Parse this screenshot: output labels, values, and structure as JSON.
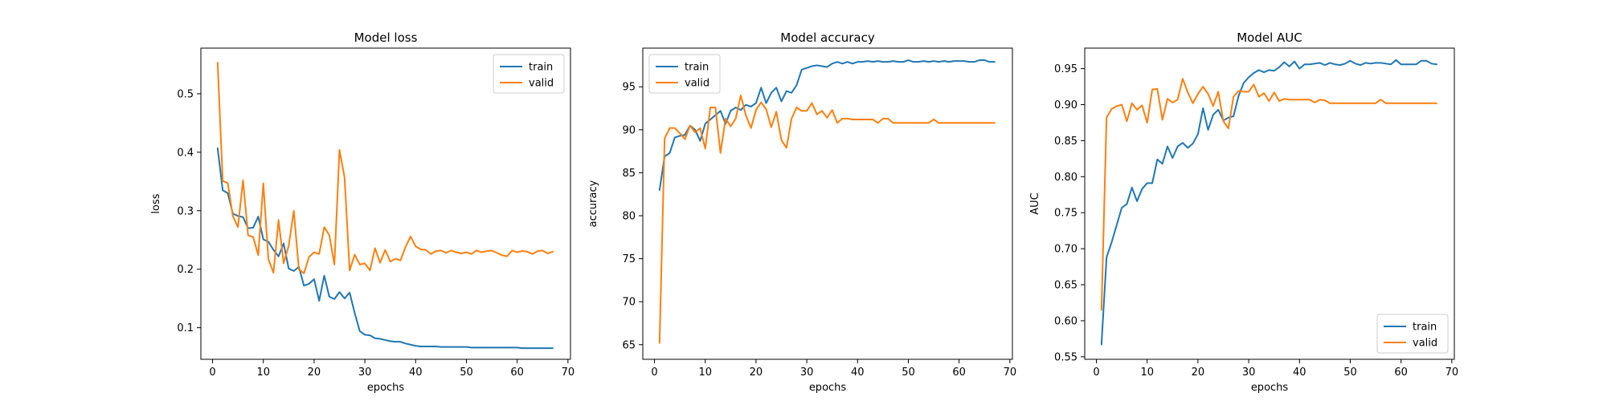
{
  "colors": {
    "train": "#1f77b4",
    "valid": "#ff7f0e",
    "axis": "#000000",
    "background": "#ffffff"
  },
  "chart_data": [
    {
      "type": "line",
      "title": "Model loss",
      "xlabel": "epochs",
      "ylabel": "loss",
      "xlim": [
        -2.3,
        70.5
      ],
      "ylim": [
        0.046,
        0.578
      ],
      "xticks": [
        0,
        10,
        20,
        30,
        40,
        50,
        60,
        70
      ],
      "yticks": [
        0.1,
        0.2,
        0.3,
        0.4,
        0.5
      ],
      "ytick_labels": [
        "0.1",
        "0.2",
        "0.3",
        "0.4",
        "0.5"
      ],
      "grid": false,
      "legend": "top-right",
      "x": [
        1,
        2,
        3,
        4,
        5,
        6,
        7,
        8,
        9,
        10,
        11,
        12,
        13,
        14,
        15,
        16,
        17,
        18,
        19,
        20,
        21,
        22,
        23,
        24,
        25,
        26,
        27,
        28,
        29,
        30,
        31,
        32,
        33,
        34,
        35,
        36,
        37,
        38,
        39,
        40,
        41,
        42,
        43,
        44,
        45,
        46,
        47,
        48,
        49,
        50,
        51,
        52,
        53,
        54,
        55,
        56,
        57,
        58,
        59,
        60,
        61,
        62,
        63,
        64,
        65,
        66,
        67
      ],
      "series": [
        {
          "name": "train",
          "color": "#1f77b4",
          "values": [
            0.407,
            0.335,
            0.33,
            0.295,
            0.291,
            0.289,
            0.27,
            0.271,
            0.29,
            0.251,
            0.247,
            0.233,
            0.222,
            0.244,
            0.201,
            0.197,
            0.204,
            0.172,
            0.175,
            0.183,
            0.146,
            0.189,
            0.153,
            0.149,
            0.161,
            0.15,
            0.16,
            0.125,
            0.094,
            0.088,
            0.087,
            0.082,
            0.081,
            0.079,
            0.077,
            0.076,
            0.076,
            0.073,
            0.071,
            0.069,
            0.068,
            0.068,
            0.068,
            0.068,
            0.067,
            0.067,
            0.067,
            0.067,
            0.067,
            0.067,
            0.066,
            0.066,
            0.066,
            0.066,
            0.066,
            0.066,
            0.066,
            0.066,
            0.066,
            0.066,
            0.065,
            0.065,
            0.065,
            0.065,
            0.065,
            0.065,
            0.065
          ]
        },
        {
          "name": "valid",
          "color": "#ff7f0e",
          "values": [
            0.553,
            0.351,
            0.347,
            0.291,
            0.272,
            0.352,
            0.258,
            0.255,
            0.224,
            0.347,
            0.217,
            0.194,
            0.284,
            0.21,
            0.24,
            0.3,
            0.2,
            0.193,
            0.221,
            0.229,
            0.226,
            0.272,
            0.258,
            0.208,
            0.404,
            0.357,
            0.198,
            0.225,
            0.208,
            0.21,
            0.198,
            0.236,
            0.211,
            0.233,
            0.213,
            0.218,
            0.215,
            0.238,
            0.256,
            0.239,
            0.234,
            0.233,
            0.226,
            0.231,
            0.232,
            0.228,
            0.232,
            0.229,
            0.227,
            0.229,
            0.226,
            0.232,
            0.229,
            0.231,
            0.232,
            0.228,
            0.224,
            0.222,
            0.232,
            0.229,
            0.231,
            0.23,
            0.226,
            0.231,
            0.232,
            0.227,
            0.23
          ]
        }
      ]
    },
    {
      "type": "line",
      "title": "Model accuracy",
      "xlabel": "epochs",
      "ylabel": "accuracy",
      "xlim": [
        -2.3,
        70.5
      ],
      "ylim": [
        63.3,
        99.5
      ],
      "xticks": [
        0,
        10,
        20,
        30,
        40,
        50,
        60,
        70
      ],
      "yticks": [
        65,
        70,
        75,
        80,
        85,
        90,
        95
      ],
      "ytick_labels": [
        "65",
        "70",
        "75",
        "80",
        "85",
        "90",
        "95"
      ],
      "grid": false,
      "legend": "top-left",
      "x": [
        1,
        2,
        3,
        4,
        5,
        6,
        7,
        8,
        9,
        10,
        11,
        12,
        13,
        14,
        15,
        16,
        17,
        18,
        19,
        20,
        21,
        22,
        23,
        24,
        25,
        26,
        27,
        28,
        29,
        30,
        31,
        32,
        33,
        34,
        35,
        36,
        37,
        38,
        39,
        40,
        41,
        42,
        43,
        44,
        45,
        46,
        47,
        48,
        49,
        50,
        51,
        52,
        53,
        54,
        55,
        56,
        57,
        58,
        59,
        60,
        61,
        62,
        63,
        64,
        65,
        66,
        67
      ],
      "series": [
        {
          "name": "train",
          "color": "#1f77b4",
          "values": [
            83.0,
            86.9,
            87.3,
            89.1,
            89.3,
            89.4,
            90.5,
            90.0,
            88.7,
            90.7,
            91.2,
            91.7,
            92.2,
            90.7,
            92.2,
            92.6,
            92.3,
            92.9,
            92.7,
            93.1,
            94.9,
            93.1,
            94.3,
            94.9,
            93.3,
            94.5,
            94.3,
            95.2,
            97.0,
            97.2,
            97.4,
            97.5,
            97.4,
            97.3,
            97.7,
            97.9,
            97.7,
            97.9,
            97.7,
            97.9,
            97.9,
            98.0,
            97.9,
            98.0,
            97.9,
            97.9,
            98.0,
            97.9,
            97.9,
            98.1,
            97.9,
            97.9,
            98.0,
            97.9,
            98.0,
            97.9,
            98.0,
            97.9,
            98.0,
            98.0,
            98.0,
            97.9,
            97.9,
            98.1,
            98.1,
            97.9,
            97.9
          ]
        },
        {
          "name": "valid",
          "color": "#ff7f0e",
          "values": [
            65.2,
            89.0,
            90.2,
            90.2,
            89.6,
            88.9,
            90.5,
            89.7,
            90.2,
            87.8,
            92.6,
            92.6,
            87.3,
            91.3,
            90.4,
            91.3,
            94.0,
            91.7,
            90.2,
            92.3,
            93.2,
            92.4,
            90.3,
            92.1,
            88.8,
            87.9,
            91.3,
            92.6,
            92.2,
            92.2,
            93.1,
            91.8,
            92.2,
            91.4,
            92.3,
            90.8,
            91.3,
            91.3,
            91.2,
            91.2,
            91.2,
            91.2,
            91.2,
            90.8,
            91.3,
            91.3,
            90.8,
            90.8,
            90.8,
            90.8,
            90.8,
            90.8,
            90.8,
            90.8,
            91.2,
            90.8,
            90.8,
            90.8,
            90.8,
            90.8,
            90.8,
            90.8,
            90.8,
            90.8,
            90.8,
            90.8,
            90.8
          ]
        }
      ]
    },
    {
      "type": "line",
      "title": "Model AUC",
      "xlabel": "epochs",
      "ylabel": "AUC",
      "xlim": [
        -2.3,
        70.5
      ],
      "ylim": [
        0.5465,
        0.9785
      ],
      "xticks": [
        0,
        10,
        20,
        30,
        40,
        50,
        60,
        70
      ],
      "yticks": [
        0.55,
        0.6,
        0.65,
        0.7,
        0.75,
        0.8,
        0.85,
        0.9,
        0.95
      ],
      "ytick_labels": [
        "0.55",
        "0.60",
        "0.65",
        "0.70",
        "0.75",
        "0.80",
        "0.85",
        "0.90",
        "0.95"
      ],
      "grid": false,
      "legend": "bottom-right",
      "x": [
        1,
        2,
        3,
        4,
        5,
        6,
        7,
        8,
        9,
        10,
        11,
        12,
        13,
        14,
        15,
        16,
        17,
        18,
        19,
        20,
        21,
        22,
        23,
        24,
        25,
        26,
        27,
        28,
        29,
        30,
        31,
        32,
        33,
        34,
        35,
        36,
        37,
        38,
        39,
        40,
        41,
        42,
        43,
        44,
        45,
        46,
        47,
        48,
        49,
        50,
        51,
        52,
        53,
        54,
        55,
        56,
        57,
        58,
        59,
        60,
        61,
        62,
        63,
        64,
        65,
        66,
        67
      ],
      "series": [
        {
          "name": "train",
          "color": "#1f77b4",
          "values": [
            0.567,
            0.688,
            0.709,
            0.733,
            0.757,
            0.762,
            0.785,
            0.766,
            0.783,
            0.791,
            0.791,
            0.824,
            0.818,
            0.842,
            0.826,
            0.842,
            0.847,
            0.84,
            0.846,
            0.859,
            0.895,
            0.865,
            0.886,
            0.893,
            0.878,
            0.882,
            0.884,
            0.912,
            0.93,
            0.938,
            0.944,
            0.948,
            0.945,
            0.948,
            0.947,
            0.952,
            0.959,
            0.953,
            0.96,
            0.95,
            0.956,
            0.956,
            0.957,
            0.958,
            0.955,
            0.958,
            0.956,
            0.955,
            0.957,
            0.961,
            0.957,
            0.955,
            0.958,
            0.957,
            0.958,
            0.958,
            0.957,
            0.956,
            0.962,
            0.956,
            0.956,
            0.956,
            0.956,
            0.961,
            0.961,
            0.957,
            0.956
          ]
        },
        {
          "name": "valid",
          "color": "#ff7f0e",
          "values": [
            0.615,
            0.882,
            0.894,
            0.898,
            0.9,
            0.877,
            0.902,
            0.893,
            0.899,
            0.875,
            0.921,
            0.922,
            0.879,
            0.908,
            0.903,
            0.907,
            0.936,
            0.917,
            0.902,
            0.915,
            0.925,
            0.915,
            0.898,
            0.918,
            0.877,
            0.867,
            0.911,
            0.919,
            0.918,
            0.918,
            0.928,
            0.911,
            0.916,
            0.905,
            0.917,
            0.905,
            0.908,
            0.907,
            0.907,
            0.907,
            0.907,
            0.907,
            0.903,
            0.907,
            0.906,
            0.902,
            0.902,
            0.902,
            0.902,
            0.902,
            0.902,
            0.902,
            0.902,
            0.902,
            0.902,
            0.907,
            0.902,
            0.902,
            0.902,
            0.902,
            0.902,
            0.902,
            0.902,
            0.902,
            0.902,
            0.902,
            0.902
          ]
        }
      ]
    }
  ]
}
